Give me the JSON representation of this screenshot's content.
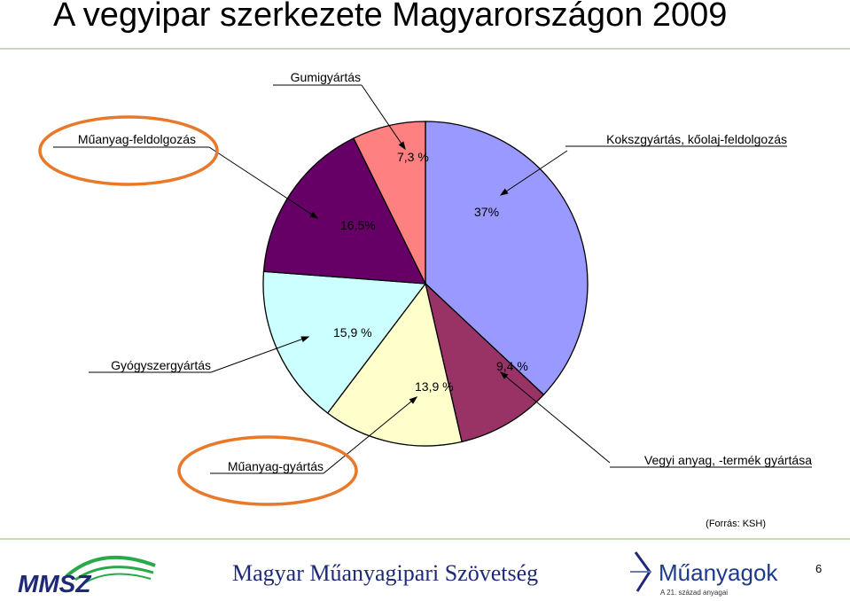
{
  "slide": {
    "title": "A vegyipar szerkezete Magyarországon 2009",
    "source": "(Forrás: KSH)",
    "footer_org": "Magyar Műanyagipari Szövetség",
    "page_number": "6",
    "logo_left_text": "MMSZ",
    "logo_right_text": "Műanyagok",
    "logo_right_tagline": "A 21. század anyagai"
  },
  "chart_data": {
    "type": "pie",
    "title": "",
    "slices": [
      {
        "name": "Kokszgyártás, kőolaj-feldolgozás",
        "value": 37,
        "label": "37%",
        "color": "#9999ff"
      },
      {
        "name": "Vegyi anyag, -termék gyártása",
        "value": 9.4,
        "label": "9,4 %",
        "color": "#993366"
      },
      {
        "name": "Műanyag-gyártás",
        "value": 13.9,
        "label": "13,9 %",
        "color": "#ffffcc"
      },
      {
        "name": "Gyógyszergyártás",
        "value": 15.9,
        "label": "15,9 %",
        "color": "#ccffff"
      },
      {
        "name": "Műanyag-feldolgozás",
        "value": 16.5,
        "label": "16,5%",
        "color": "#660066"
      },
      {
        "name": "Gumigyártás",
        "value": 7.3,
        "label": "7,3 %",
        "color": "#ff8080"
      }
    ],
    "highlighted": [
      "Műanyag-feldolgozás",
      "Műanyag-gyártás"
    ],
    "highlight_color": "#e8792b",
    "legend": "none"
  }
}
